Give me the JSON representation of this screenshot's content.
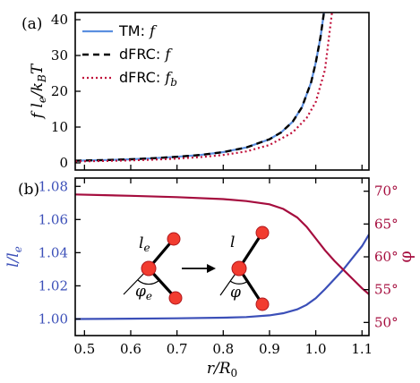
{
  "colors": {
    "tm": "#5b8fe0",
    "dfrc_f": "#000000",
    "dfrc_fb": "#c0103a",
    "left_axis": "#3b4fb8",
    "right_axis": "#a50d3e",
    "bead_fill": "#f23c30",
    "bead_edge": "#b0181c"
  },
  "chart_data": [
    {
      "type": "line",
      "panel_label": "(a)",
      "ylabel": "f l_e / k_B T",
      "xlim": [
        0.48,
        1.115
      ],
      "ylim": [
        -2,
        42
      ],
      "yticks": [
        0,
        10,
        20,
        30,
        40
      ],
      "legend_position": "top-left",
      "series": [
        {
          "name": "TM: f",
          "name_main": "TM: ",
          "name_var": "f",
          "style": "solid",
          "x": [
            0.48,
            0.55,
            0.6,
            0.65,
            0.7,
            0.75,
            0.8,
            0.85,
            0.9,
            0.925,
            0.95,
            0.97,
            0.99,
            1.0,
            1.01,
            1.02
          ],
          "y": [
            0.6,
            0.8,
            1.0,
            1.3,
            1.7,
            2.2,
            3.0,
            4.3,
            6.6,
            8.5,
            11.5,
            15.5,
            22.5,
            28.0,
            35.0,
            44.0
          ]
        },
        {
          "name": "dFRC: f",
          "name_main": "dFRC: ",
          "name_var": "f",
          "style": "dashed",
          "x": [
            0.48,
            0.55,
            0.6,
            0.65,
            0.7,
            0.75,
            0.8,
            0.85,
            0.9,
            0.925,
            0.95,
            0.97,
            0.99,
            1.0,
            1.01,
            1.02
          ],
          "y": [
            0.6,
            0.8,
            1.0,
            1.3,
            1.7,
            2.2,
            3.0,
            4.3,
            6.6,
            8.5,
            11.5,
            15.5,
            22.5,
            28.0,
            35.0,
            44.0
          ]
        },
        {
          "name": "dFRC: f_b",
          "name_main": "dFRC: ",
          "name_var": "f",
          "name_sub": "b",
          "style": "dotted",
          "x": [
            0.48,
            0.55,
            0.6,
            0.65,
            0.7,
            0.75,
            0.8,
            0.85,
            0.9,
            0.95,
            0.98,
            1.0,
            1.02,
            1.035
          ],
          "y": [
            0.4,
            0.55,
            0.7,
            0.9,
            1.2,
            1.6,
            2.2,
            3.2,
            5.0,
            8.5,
            12.5,
            17.0,
            26.0,
            42.0
          ]
        }
      ]
    },
    {
      "type": "line",
      "panel_label": "(b)",
      "xlabel": "r / R_0",
      "ylabel": "l / l_e",
      "ylabel_right": "φ",
      "xlim": [
        0.48,
        1.115
      ],
      "xticks": [
        0.5,
        0.6,
        0.7,
        0.8,
        0.9,
        1.0,
        1.1
      ],
      "xtick_labels": [
        "0.5",
        "0.6",
        "0.7",
        "0.8",
        "0.9",
        "1.0",
        "1.1"
      ],
      "ylim": [
        0.99,
        1.085
      ],
      "yticks": [
        1.0,
        1.02,
        1.04,
        1.06,
        1.08
      ],
      "ytick_labels": [
        "1.00",
        "1.02",
        "1.04",
        "1.06",
        "1.08"
      ],
      "ylim_right": [
        48,
        72
      ],
      "yticks_right": [
        50,
        55,
        60,
        65,
        70
      ],
      "ytick_labels_right": [
        "50°",
        "55°",
        "60°",
        "65°",
        "70°"
      ],
      "series": [
        {
          "axis": "left",
          "x": [
            0.48,
            0.6,
            0.7,
            0.8,
            0.85,
            0.9,
            0.93,
            0.96,
            0.98,
            1.0,
            1.02,
            1.04,
            1.06,
            1.08,
            1.1,
            1.115
          ],
          "y": [
            1.0,
            1.0002,
            1.0004,
            1.0008,
            1.0012,
            1.0022,
            1.0035,
            1.0058,
            1.0085,
            1.0125,
            1.018,
            1.024,
            1.03,
            1.037,
            1.044,
            1.051
          ]
        },
        {
          "axis": "right",
          "x": [
            0.48,
            0.6,
            0.7,
            0.8,
            0.85,
            0.9,
            0.93,
            0.96,
            0.98,
            1.0,
            1.02,
            1.04,
            1.06,
            1.08,
            1.1,
            1.115
          ],
          "y": [
            69.5,
            69.3,
            69.1,
            68.8,
            68.5,
            68.0,
            67.3,
            66.0,
            64.6,
            62.8,
            61.0,
            59.4,
            58.0,
            56.6,
            55.2,
            54.3
          ]
        }
      ],
      "inset_labels": {
        "le_main": "l",
        "le_sub": "e",
        "phie_main": "φ",
        "phie_sub": "e",
        "l": "l",
        "phi": "φ"
      }
    }
  ]
}
